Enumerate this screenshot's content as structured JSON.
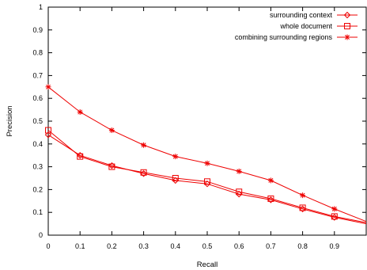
{
  "chart_data": {
    "type": "line",
    "title": "",
    "xlabel": "Recall",
    "ylabel": "Precision",
    "xlim": [
      0,
      1
    ],
    "ylim": [
      0,
      1
    ],
    "grid": false,
    "legend_position": "top-right",
    "x_ticks": [
      "0",
      "0.1",
      "0.2",
      "0.3",
      "0.4",
      "0.5",
      "0.6",
      "0.7",
      "0.8",
      "0.9"
    ],
    "y_ticks": [
      "0",
      "0.1",
      "0.2",
      "0.3",
      "0.4",
      "0.5",
      "0.6",
      "0.7",
      "0.8",
      "0.9",
      "1"
    ],
    "x": [
      0,
      0.1,
      0.2,
      0.3,
      0.4,
      0.5,
      0.6,
      0.7,
      0.8,
      0.9,
      1.0
    ],
    "series": [
      {
        "name": "surrounding context",
        "marker": "diamond",
        "color": "#ee0000",
        "values": [
          0.44,
          0.35,
          0.305,
          0.27,
          0.24,
          0.225,
          0.18,
          0.155,
          0.115,
          0.078,
          0.05
        ]
      },
      {
        "name": "whole document",
        "marker": "square",
        "color": "#ee0000",
        "values": [
          0.46,
          0.345,
          0.3,
          0.275,
          0.25,
          0.235,
          0.19,
          0.16,
          0.12,
          0.082,
          0.055
        ]
      },
      {
        "name": "combining surrounding regions",
        "marker": "star",
        "color": "#ee0000",
        "values": [
          0.65,
          0.54,
          0.46,
          0.395,
          0.345,
          0.315,
          0.28,
          0.24,
          0.175,
          0.115,
          0.06
        ]
      }
    ]
  }
}
